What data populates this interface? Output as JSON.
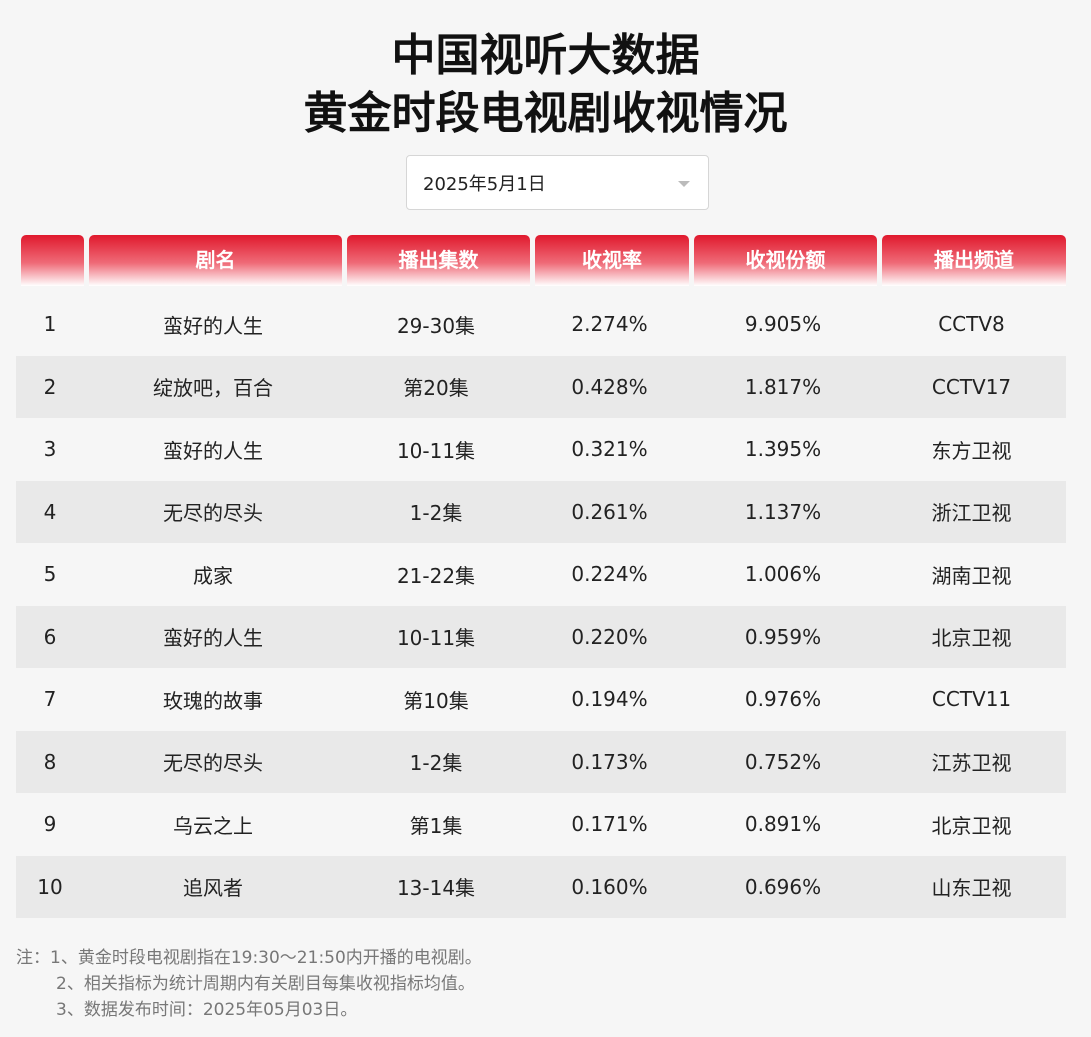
{
  "title_line1": "中国视听大数据",
  "title_line2": "黄金时段电视剧收视情况",
  "date_select": {
    "value": "2025年5月1日"
  },
  "table": {
    "headers": [
      "",
      "剧名",
      "播出集数",
      "收视率",
      "收视份额",
      "播出频道"
    ],
    "rows": [
      [
        "1",
        "蛮好的人生",
        "29-30集",
        "2.274%",
        "9.905%",
        "CCTV8"
      ],
      [
        "2",
        "绽放吧，百合",
        "第20集",
        "0.428%",
        "1.817%",
        "CCTV17"
      ],
      [
        "3",
        "蛮好的人生",
        "10-11集",
        "0.321%",
        "1.395%",
        "东方卫视"
      ],
      [
        "4",
        "无尽的尽头",
        "1-2集",
        "0.261%",
        "1.137%",
        "浙江卫视"
      ],
      [
        "5",
        "成家",
        "21-22集",
        "0.224%",
        "1.006%",
        "湖南卫视"
      ],
      [
        "6",
        "蛮好的人生",
        "10-11集",
        "0.220%",
        "0.959%",
        "北京卫视"
      ],
      [
        "7",
        "玫瑰的故事",
        "第10集",
        "0.194%",
        "0.976%",
        "CCTV11"
      ],
      [
        "8",
        "无尽的尽头",
        "1-2集",
        "0.173%",
        "0.752%",
        "江苏卫视"
      ],
      [
        "9",
        "乌云之上",
        "第1集",
        "0.171%",
        "0.891%",
        "北京卫视"
      ],
      [
        "10",
        "追风者",
        "13-14集",
        "0.160%",
        "0.696%",
        "山东卫视"
      ]
    ]
  },
  "notes": [
    "注：1、黄金时段电视剧指在19:30～21:50内开播的电视剧。",
    "2、相关指标为统计周期内有关剧目每集收视指标均值。",
    "3、数据发布时间：2025年05月03日。"
  ]
}
